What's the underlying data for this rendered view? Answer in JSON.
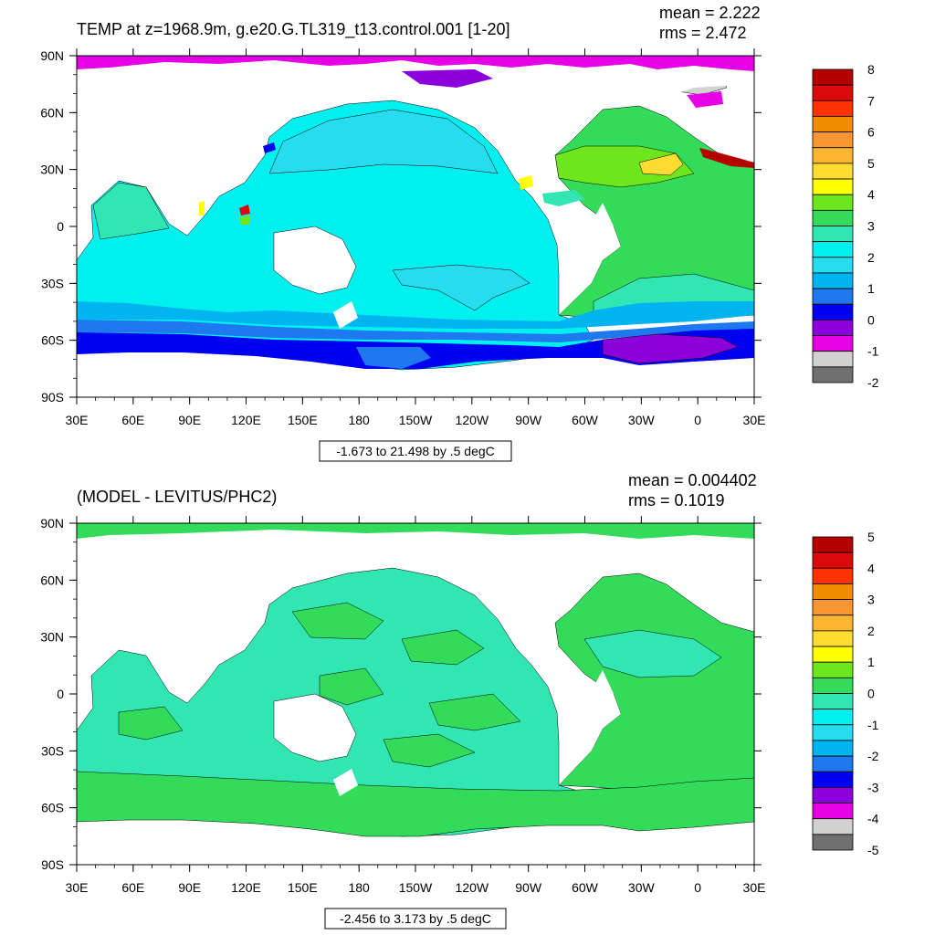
{
  "panels": [
    {
      "id": "top",
      "title": "TEMP at z=1968.9m, g.e20.G.TL319_t13.control.001 [1-20]",
      "stats": {
        "mean": "mean = 2.222",
        "rms": "rms = 2.472"
      },
      "range_label": "-1.673 to 21.498 by .5 degC",
      "lat_ticks": [
        "90N",
        "60N",
        "30N",
        "0",
        "30S",
        "60S",
        "90S"
      ],
      "lon_ticks": [
        "30E",
        "60E",
        "90E",
        "120E",
        "150E",
        "180",
        "150W",
        "120W",
        "90W",
        "60W",
        "30W",
        "0",
        "30E"
      ],
      "colorbar": {
        "labels": [
          "8",
          "7",
          "6",
          "5",
          "4",
          "3",
          "2",
          "1",
          "0",
          "-1",
          "-2"
        ],
        "colors": [
          "#B40000",
          "#DC0A0A",
          "#FF3200",
          "#F08C00",
          "#FA9632",
          "#FFB432",
          "#FFDC32",
          "#FFFF00",
          "#6EE61E",
          "#32DC5A",
          "#32E6B4",
          "#00F0F0",
          "#28DCF0",
          "#00B4F0",
          "#1E78F0",
          "#0000F0",
          "#8C00DC",
          "#E600E6",
          "#D2D2D2",
          "#707070"
        ]
      }
    },
    {
      "id": "bottom",
      "title": "(MODEL - LEVITUS/PHC2)",
      "stats": {
        "mean": "mean = 0.004402",
        "rms": "rms = 0.1019"
      },
      "range_label": "-2.456 to 3.173 by .5 degC",
      "lat_ticks": [
        "90N",
        "60N",
        "30N",
        "0",
        "30S",
        "60S",
        "90S"
      ],
      "lon_ticks": [
        "30E",
        "60E",
        "90E",
        "120E",
        "150E",
        "180",
        "150W",
        "120W",
        "90W",
        "60W",
        "30W",
        "0",
        "30E"
      ],
      "colorbar": {
        "labels": [
          "5",
          "4",
          "3",
          "2",
          "1",
          "0",
          "-1",
          "-2",
          "-3",
          "-4",
          "-5"
        ],
        "colors": [
          "#B40000",
          "#DC0A0A",
          "#FF3200",
          "#F08C00",
          "#FA9632",
          "#FFB432",
          "#FFDC32",
          "#FFFF00",
          "#6EE61E",
          "#32DC5A",
          "#32E6B4",
          "#00F0F0",
          "#28DCF0",
          "#00B4F0",
          "#1E78F0",
          "#0000F0",
          "#8C00DC",
          "#E600E6",
          "#D2D2D2",
          "#707070"
        ]
      }
    }
  ]
}
